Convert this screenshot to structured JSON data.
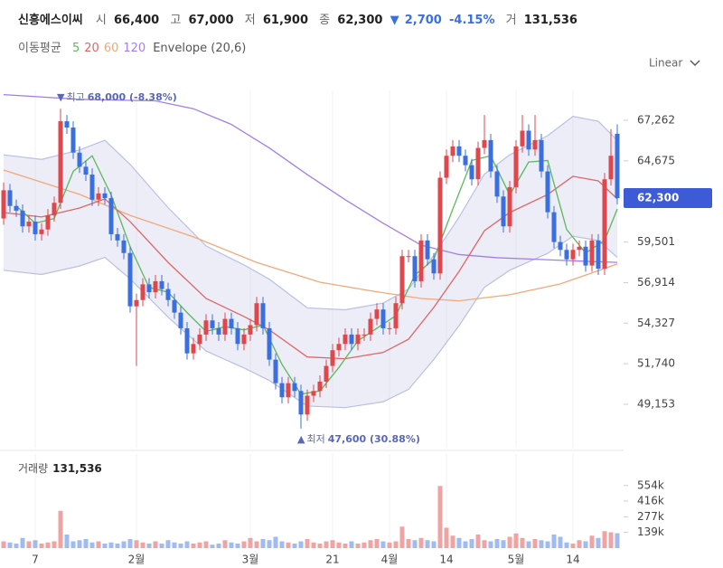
{
  "header": {
    "name": "신흥에스이씨",
    "fields": [
      {
        "label": "시",
        "value": "66,400"
      },
      {
        "label": "고",
        "value": "67,000"
      },
      {
        "label": "저",
        "value": "61,900"
      },
      {
        "label": "종",
        "value": "62,300"
      }
    ],
    "change": {
      "arrow": "▼",
      "amount": "2,700",
      "percent": "-4.15%"
    },
    "volume": {
      "label": "거",
      "value": "131,536"
    }
  },
  "legend": {
    "title": "이동평균"
  },
  "scale_button": "Linear",
  "chart_data": {
    "type": "candlestick",
    "up_color": "#e0474c",
    "down_color": "#3a6fe0",
    "candles": [
      [
        61000,
        63300,
        60600,
        62800
      ],
      [
        62800,
        63200,
        61400,
        61800
      ],
      [
        61800,
        62200,
        61100,
        61500
      ],
      [
        61500,
        61900,
        60100,
        60500
      ],
      [
        60500,
        61200,
        60100,
        60800
      ],
      [
        60800,
        61200,
        59600,
        60000
      ],
      [
        60000,
        60700,
        59600,
        60300
      ],
      [
        60300,
        61600,
        59900,
        61200
      ],
      [
        61200,
        62400,
        60800,
        62000
      ],
      [
        62000,
        68000,
        61600,
        67200
      ],
      [
        67200,
        67600,
        66400,
        66800
      ],
      [
        66800,
        67200,
        64800,
        65200
      ],
      [
        65200,
        65600,
        63900,
        64300
      ],
      [
        64300,
        64700,
        63400,
        63800
      ],
      [
        63800,
        64200,
        61800,
        62200
      ],
      [
        62200,
        63000,
        61800,
        62600
      ],
      [
        62600,
        63000,
        61900,
        62300
      ],
      [
        62300,
        62700,
        59600,
        60000
      ],
      [
        60000,
        60400,
        59200,
        59600
      ],
      [
        59600,
        60000,
        58400,
        58800
      ],
      [
        58800,
        59200,
        55000,
        55400
      ],
      [
        55400,
        56200,
        51600,
        55800
      ],
      [
        55800,
        57200,
        55400,
        56800
      ],
      [
        56800,
        57200,
        55900,
        56300
      ],
      [
        56300,
        57400,
        55900,
        57000
      ],
      [
        57000,
        57400,
        56100,
        56500
      ],
      [
        56500,
        56900,
        55400,
        55800
      ],
      [
        55800,
        56200,
        54600,
        55000
      ],
      [
        55000,
        55400,
        53600,
        54000
      ],
      [
        54000,
        54400,
        52000,
        52400
      ],
      [
        52400,
        53400,
        52000,
        53000
      ],
      [
        53000,
        54000,
        52600,
        53600
      ],
      [
        53600,
        54900,
        53200,
        54500
      ],
      [
        54500,
        54900,
        53600,
        54000
      ],
      [
        54000,
        54400,
        53200,
        53600
      ],
      [
        53600,
        55000,
        53200,
        54600
      ],
      [
        54600,
        55000,
        53600,
        54000
      ],
      [
        54000,
        54400,
        52600,
        53000
      ],
      [
        53000,
        54000,
        52600,
        53600
      ],
      [
        53600,
        54600,
        53200,
        54200
      ],
      [
        54200,
        56000,
        53800,
        55600
      ],
      [
        55600,
        56000,
        53600,
        54000
      ],
      [
        54000,
        54400,
        51600,
        52000
      ],
      [
        52000,
        52400,
        50100,
        50500
      ],
      [
        50500,
        50900,
        49200,
        49600
      ],
      [
        49600,
        50900,
        49200,
        50500
      ],
      [
        50500,
        50900,
        49600,
        50000
      ],
      [
        50000,
        50400,
        47600,
        48500
      ],
      [
        48500,
        50100,
        48100,
        49700
      ],
      [
        49700,
        50400,
        49300,
        50000
      ],
      [
        50000,
        51000,
        49600,
        50600
      ],
      [
        50600,
        52000,
        50200,
        51600
      ],
      [
        51600,
        53000,
        51200,
        52600
      ],
      [
        52600,
        53400,
        52200,
        53000
      ],
      [
        53000,
        54000,
        52600,
        53600
      ],
      [
        53600,
        54000,
        52600,
        53000
      ],
      [
        53000,
        54000,
        52600,
        53600
      ],
      [
        53600,
        54000,
        53200,
        53600
      ],
      [
        53600,
        55000,
        53200,
        54600
      ],
      [
        54600,
        55600,
        54200,
        55200
      ],
      [
        55200,
        55600,
        53600,
        54000
      ],
      [
        54000,
        54400,
        53600,
        54000
      ],
      [
        54000,
        56000,
        53600,
        55600
      ],
      [
        55600,
        59000,
        55200,
        58600
      ],
      [
        58600,
        59000,
        58200,
        58600
      ],
      [
        58600,
        59000,
        56600,
        57000
      ],
      [
        57000,
        60000,
        56600,
        59600
      ],
      [
        59600,
        60000,
        58000,
        58400
      ],
      [
        58400,
        58800,
        57100,
        57500
      ],
      [
        57500,
        64000,
        57100,
        63600
      ],
      [
        63600,
        65400,
        63200,
        65000
      ],
      [
        65000,
        66000,
        64600,
        65600
      ],
      [
        65600,
        66000,
        64600,
        65000
      ],
      [
        65000,
        65400,
        64000,
        64400
      ],
      [
        64400,
        64800,
        63100,
        63500
      ],
      [
        63500,
        65900,
        63100,
        65500
      ],
      [
        65500,
        67600,
        65100,
        66000
      ],
      [
        66000,
        66400,
        63600,
        64000
      ],
      [
        64000,
        64400,
        62000,
        62400
      ],
      [
        62400,
        62800,
        60100,
        60500
      ],
      [
        60500,
        63400,
        60100,
        63000
      ],
      [
        63000,
        66000,
        62600,
        65600
      ],
      [
        65600,
        67600,
        65200,
        66600
      ],
      [
        66600,
        67000,
        65000,
        65400
      ],
      [
        65400,
        67600,
        65000,
        66000
      ],
      [
        66000,
        66400,
        63600,
        64000
      ],
      [
        64000,
        64400,
        61000,
        61400
      ],
      [
        61400,
        61800,
        59100,
        59500
      ],
      [
        59500,
        59900,
        58600,
        59000
      ],
      [
        59000,
        59400,
        58000,
        58400
      ],
      [
        58400,
        59400,
        58000,
        59000
      ],
      [
        59000,
        59600,
        58600,
        59200
      ],
      [
        59200,
        59600,
        57600,
        58000
      ],
      [
        58000,
        60000,
        57600,
        59600
      ],
      [
        59600,
        60000,
        57400,
        57800
      ],
      [
        57800,
        63900,
        57400,
        63500
      ],
      [
        63500,
        66700,
        63100,
        65000
      ],
      [
        66400,
        67000,
        61900,
        62300
      ]
    ],
    "ylim": [
      46673,
      69165
    ],
    "yticks": [
      {
        "value": 67262,
        "label": "67,262"
      },
      {
        "value": 64675,
        "label": "64,675"
      },
      {
        "value": 59501,
        "label": "59,501"
      },
      {
        "value": 56914,
        "label": "56,914"
      },
      {
        "value": 54327,
        "label": "54,327"
      },
      {
        "value": 51740,
        "label": "51,740"
      },
      {
        "value": 49153,
        "label": "49,153"
      }
    ],
    "xticks": [
      {
        "value": 5,
        "label": "7"
      },
      {
        "value": 21,
        "label": "2월"
      },
      {
        "value": 39,
        "label": "3월"
      },
      {
        "value": 52,
        "label": "21"
      },
      {
        "value": 61,
        "label": "4월"
      },
      {
        "value": 70,
        "label": "14"
      },
      {
        "value": 81,
        "label": "5월"
      },
      {
        "value": 90,
        "label": "14"
      }
    ],
    "series": [
      {
        "name": "5",
        "color": "#5cb85c",
        "x": [
          2,
          5,
          8,
          11,
          14,
          17,
          20,
          23,
          26,
          29,
          32,
          35,
          38,
          41,
          44,
          47,
          50,
          53,
          56,
          59,
          62,
          65,
          68,
          71,
          74,
          77,
          80,
          83,
          86,
          89,
          92,
          95,
          97
        ],
        "values": [
          61800,
          60700,
          61000,
          64000,
          65000,
          62500,
          59200,
          56600,
          56300,
          55000,
          53800,
          54100,
          53900,
          54200,
          51700,
          49800,
          50000,
          51500,
          53200,
          54000,
          54800,
          57400,
          58400,
          61600,
          64700,
          65000,
          62500,
          64600,
          64700,
          60300,
          58800,
          59600,
          61600
        ]
      },
      {
        "name": "20",
        "color": "#e06666",
        "x": [
          0,
          6,
          12,
          16,
          20,
          26,
          32,
          38,
          42,
          48,
          54,
          60,
          64,
          68,
          72,
          76,
          80,
          86,
          90,
          94,
          97
        ],
        "values": [
          61380,
          61100,
          61670,
          62250,
          60800,
          58200,
          55900,
          54750,
          53900,
          52170,
          52060,
          52460,
          53300,
          55330,
          57630,
          60220,
          61380,
          62530,
          63690,
          63400,
          62250
        ]
      },
      {
        "name": "60",
        "color": "#f2a878",
        "x": [
          0,
          12,
          20,
          30,
          40,
          50,
          58,
          66,
          72,
          80,
          88,
          97
        ],
        "values": [
          64090,
          62540,
          61200,
          59830,
          58200,
          56940,
          56390,
          55900,
          55750,
          56140,
          56830,
          58100
        ]
      },
      {
        "name": "120",
        "color": "#a47ee8",
        "x": [
          0,
          12,
          24,
          30,
          36,
          42,
          48,
          54,
          60,
          66,
          72,
          78,
          84,
          90,
          97
        ],
        "values": [
          68900,
          68600,
          68500,
          68000,
          67000,
          65500,
          63800,
          62200,
          60700,
          59300,
          58700,
          58500,
          58400,
          58300,
          58200
        ]
      }
    ],
    "envelope": {
      "name": "Envelope (20,6)",
      "color": "#b9c0e3",
      "x": [
        0,
        6,
        12,
        16,
        20,
        26,
        32,
        38,
        42,
        48,
        54,
        60,
        64,
        68,
        72,
        76,
        80,
        86,
        90,
        94,
        97
      ],
      "upper": [
        65060,
        64770,
        65370,
        65990,
        64450,
        61690,
        59250,
        58040,
        57130,
        55300,
        55180,
        55610,
        56500,
        58650,
        61090,
        63830,
        65060,
        66280,
        67510,
        67200,
        65990
      ],
      "lower": [
        57700,
        57430,
        57970,
        58520,
        57150,
        54710,
        52550,
        51470,
        50670,
        49040,
        48940,
        49310,
        50100,
        52010,
        54170,
        56610,
        57700,
        58780,
        59870,
        59600,
        58520
      ]
    },
    "annotations": [
      {
        "arrow": "▼",
        "label": "최고",
        "text": "68,000 (-8.38%)"
      },
      {
        "arrow": "▲",
        "label": "최저",
        "text": "47,600 (30.88%)"
      }
    ],
    "last_price": "62,300",
    "volume": {
      "title": "거래량",
      "label": "131,536",
      "values": [
        60000,
        50000,
        40000,
        90000,
        60000,
        70000,
        40000,
        50000,
        60000,
        330000,
        120000,
        60000,
        70000,
        80000,
        50000,
        60000,
        40000,
        50000,
        40000,
        60000,
        80000,
        70000,
        50000,
        40000,
        60000,
        40000,
        70000,
        50000,
        40000,
        60000,
        40000,
        50000,
        60000,
        30000,
        40000,
        70000,
        50000,
        40000,
        60000,
        90000,
        60000,
        80000,
        70000,
        100000,
        60000,
        50000,
        40000,
        60000,
        80000,
        50000,
        40000,
        60000,
        70000,
        50000,
        40000,
        60000,
        40000,
        50000,
        70000,
        80000,
        60000,
        50000,
        60000,
        190000,
        80000,
        70000,
        90000,
        70000,
        60000,
        550000,
        180000,
        110000,
        90000,
        60000,
        80000,
        120000,
        70000,
        60000,
        80000,
        70000,
        100000,
        130000,
        90000,
        60000,
        80000,
        70000,
        60000,
        120000,
        100000,
        50000,
        40000,
        70000,
        60000,
        110000,
        90000,
        150000,
        140000,
        131536
      ],
      "ylim": [
        0,
        768000
      ],
      "yticks": [
        {
          "value": 554000,
          "label": "554k"
        },
        {
          "value": 416000,
          "label": "416k"
        },
        {
          "value": 277000,
          "label": "277k"
        },
        {
          "value": 139000,
          "label": "139k"
        }
      ],
      "up_color": "#f0a3a3",
      "down_color": "#9fbbf0"
    }
  }
}
